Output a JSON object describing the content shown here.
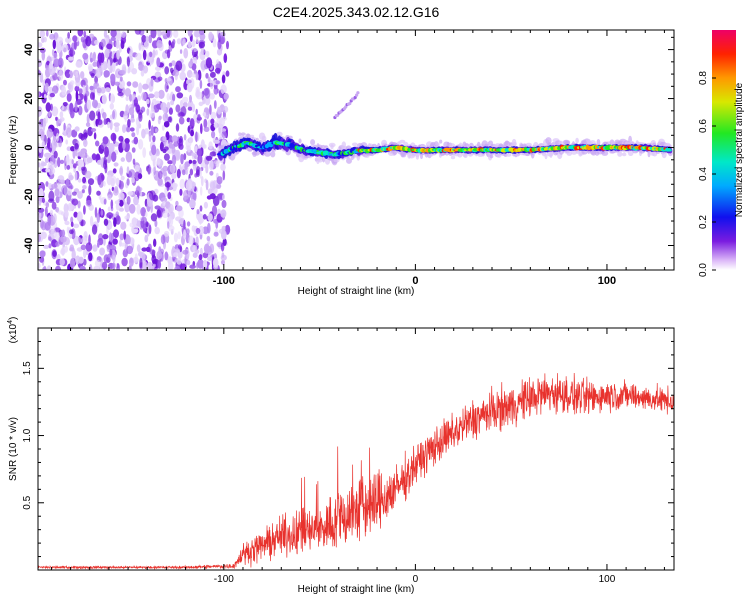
{
  "title": "C2E4.2025.343.02.12.G16",
  "chart_data": [
    {
      "type": "heatmap",
      "xlabel": "Height of straight line (km)",
      "ylabel": "Frequency (Hz)",
      "xlim": [
        -197,
        135
      ],
      "ylim": [
        -50,
        48
      ],
      "x_ticks": [
        -100,
        0,
        100
      ],
      "x_tick_labels": [
        "-100",
        "0",
        "100"
      ],
      "y_ticks": [
        -40,
        -20,
        0,
        20,
        40
      ],
      "y_tick_labels": [
        "-40",
        "-20",
        "0",
        "20",
        "40"
      ],
      "noise_region_x": [
        -197,
        -100
      ],
      "signal_trace": {
        "x": [
          -102,
          -95,
          -88,
          -80,
          -72,
          -65,
          -58,
          -50,
          -42,
          -35,
          -28,
          -20,
          -10,
          0,
          20,
          40,
          60,
          80,
          100,
          120,
          133
        ],
        "y": [
          -3,
          0,
          2,
          0,
          2,
          1,
          -1,
          -2,
          -3,
          -2,
          -1,
          -1,
          0,
          -1,
          -1,
          -1,
          -1,
          0,
          0,
          0,
          -1
        ],
        "spread_hz": [
          2.5,
          3,
          3,
          2.5,
          4,
          3,
          2.5,
          2,
          2,
          1.5,
          1.5,
          1,
          1,
          1,
          1,
          1,
          1,
          1,
          1,
          1,
          1
        ]
      },
      "side_lobe": {
        "x": [
          -42,
          -30
        ],
        "y": [
          12,
          22
        ]
      },
      "colorbar": {
        "label": "Normalized spectral amplitude",
        "range": [
          0,
          1
        ],
        "ticks": [
          0.0,
          0.2,
          0.4,
          0.6,
          0.8
        ],
        "tick_labels": [
          "0.0",
          "0.2",
          "0.4",
          "0.6",
          "0.8"
        ]
      }
    },
    {
      "type": "line",
      "xlabel": "Height of straight line (km)",
      "ylabel": "SNR (10 * v/v)",
      "multiplier_label": "(x10",
      "multiplier_exp": "4",
      "xlim": [
        -197,
        135
      ],
      "ylim": [
        0,
        1.8
      ],
      "x_ticks": [
        -100,
        0,
        100
      ],
      "x_tick_labels": [
        "-100",
        "0",
        "100"
      ],
      "y_ticks": [
        0.5,
        1.0,
        1.5
      ],
      "y_tick_labels": [
        "0.5",
        "1.0",
        "1.5"
      ],
      "color": "#e8322d",
      "envelope": {
        "x": [
          -197,
          -120,
          -95,
          -90,
          -80,
          -70,
          -60,
          -50,
          -40,
          -30,
          -20,
          -10,
          0,
          10,
          20,
          30,
          40,
          50,
          60,
          70,
          80,
          90,
          100,
          110,
          120,
          135
        ],
        "mean": [
          0.02,
          0.02,
          0.03,
          0.12,
          0.18,
          0.25,
          0.28,
          0.3,
          0.38,
          0.45,
          0.5,
          0.6,
          0.78,
          0.92,
          1.02,
          1.12,
          1.18,
          1.22,
          1.28,
          1.32,
          1.3,
          1.28,
          1.3,
          1.3,
          1.28,
          1.25
        ],
        "noise": [
          0.01,
          0.01,
          0.02,
          0.08,
          0.12,
          0.15,
          0.18,
          0.18,
          0.25,
          0.28,
          0.25,
          0.18,
          0.15,
          0.15,
          0.15,
          0.16,
          0.16,
          0.16,
          0.16,
          0.16,
          0.15,
          0.14,
          0.12,
          0.11,
          0.1,
          0.1
        ]
      }
    }
  ]
}
